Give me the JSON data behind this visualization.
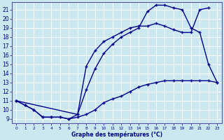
{
  "xlabel": "Graphe des températures (°C)",
  "bg_color": "#cbe8f0",
  "grid_color": "#ffffff",
  "line_color": "#00008b",
  "xlim": [
    -0.5,
    23.5
  ],
  "ylim": [
    8.5,
    21.8
  ],
  "yticks": [
    9,
    10,
    11,
    12,
    13,
    14,
    15,
    16,
    17,
    18,
    19,
    20,
    21
  ],
  "xticks": [
    0,
    1,
    2,
    3,
    4,
    5,
    6,
    7,
    8,
    9,
    10,
    11,
    12,
    13,
    14,
    15,
    16,
    17,
    18,
    19,
    20,
    21,
    22,
    23
  ],
  "line1_x": [
    0,
    1,
    2,
    3,
    4,
    5,
    6,
    7,
    8,
    9,
    10,
    11,
    12,
    13,
    14,
    15,
    16,
    17,
    18,
    19,
    20,
    21,
    22,
    23
  ],
  "line1_y": [
    11,
    10.5,
    10,
    9.2,
    9.2,
    9.2,
    9.0,
    9.2,
    9.5,
    10,
    10.8,
    11.2,
    11.5,
    12,
    12.5,
    12.8,
    13,
    13.2,
    13.2,
    13.2,
    13.2,
    13.2,
    13.2,
    13.0
  ],
  "line2_x": [
    0,
    1,
    2,
    3,
    4,
    5,
    6,
    7,
    8,
    9,
    10,
    11,
    12,
    13,
    14,
    15,
    16,
    17,
    18,
    19,
    20,
    21,
    22,
    23
  ],
  "line2_y": [
    11,
    10.5,
    10,
    9.2,
    9.2,
    9.2,
    9.0,
    9.5,
    12.2,
    14.5,
    16.2,
    17.2,
    18,
    18.5,
    19,
    20.8,
    21.5,
    21.5,
    21.2,
    21,
    19,
    18.5,
    15,
    13
  ],
  "line3_x": [
    0,
    7,
    8,
    9,
    10,
    11,
    12,
    13,
    14,
    15,
    16,
    17,
    18,
    19,
    20,
    21,
    22
  ],
  "line3_y": [
    11,
    9.5,
    14.8,
    16.5,
    17.5,
    18,
    18.5,
    19,
    19.2,
    19.2,
    19.5,
    19.2,
    18.8,
    18.5,
    18.5,
    21.0,
    21.2
  ]
}
